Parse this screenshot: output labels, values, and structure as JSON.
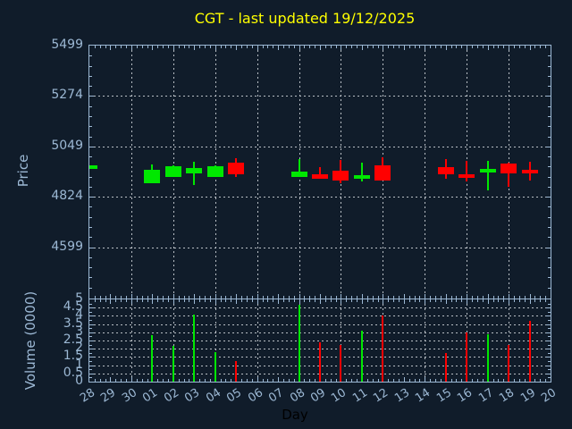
{
  "window": {
    "title": "CGT - last updated 19/12/2025"
  },
  "colors": {
    "background": "#101c2a",
    "axis": "#9cb8d4",
    "grid": "#b9bfc5",
    "title": "#ffff00",
    "up": "#00e800",
    "down": "#ff0000",
    "xlabel_color": "#000000"
  },
  "chart_data": [
    {
      "type": "candlestick",
      "title": "CGT - last updated 19/12/2025",
      "ylabel": "Price",
      "yticks": [
        "5499",
        "5274",
        "5049",
        "4824",
        "4599"
      ],
      "ytick_values": [
        5499,
        5274,
        5049,
        4824,
        4599
      ],
      "ylim": [
        4371,
        5499
      ],
      "grid": "dashed; horizontal at price ticks, vertical every 2nd day",
      "legend": "none",
      "x_categories": [
        "28",
        "29",
        "30",
        "01",
        "02",
        "03",
        "04",
        "05",
        "06",
        "07",
        "08",
        "09",
        "10",
        "11",
        "12",
        "13",
        "14",
        "15",
        "16",
        "17",
        "18",
        "19",
        "20"
      ],
      "candles": [
        {
          "day": "28",
          "open": 4947,
          "high": 4965,
          "low": 4947,
          "close": 4965,
          "dir": "up"
        },
        {
          "day": "01",
          "open": 4886,
          "high": 4968,
          "low": 4886,
          "close": 4945,
          "dir": "up"
        },
        {
          "day": "02",
          "open": 4912,
          "high": 4966,
          "low": 4912,
          "close": 4961,
          "dir": "up"
        },
        {
          "day": "03",
          "open": 4928,
          "high": 4982,
          "low": 4878,
          "close": 4952,
          "dir": "up"
        },
        {
          "day": "04",
          "open": 4914,
          "high": 4963,
          "low": 4914,
          "close": 4959,
          "dir": "up"
        },
        {
          "day": "05",
          "open": 4976,
          "high": 4996,
          "low": 4915,
          "close": 4926,
          "dir": "down"
        },
        {
          "day": "08",
          "open": 4912,
          "high": 4992,
          "low": 4912,
          "close": 4938,
          "dir": "up"
        },
        {
          "day": "09",
          "open": 4926,
          "high": 4956,
          "low": 4904,
          "close": 4906,
          "dir": "down"
        },
        {
          "day": "10",
          "open": 4939,
          "high": 4990,
          "low": 4886,
          "close": 4899,
          "dir": "down"
        },
        {
          "day": "11",
          "open": 4906,
          "high": 4975,
          "low": 4895,
          "close": 4922,
          "dir": "up"
        },
        {
          "day": "12",
          "open": 4966,
          "high": 4999,
          "low": 4897,
          "close": 4899,
          "dir": "down"
        },
        {
          "day": "15",
          "open": 4955,
          "high": 4992,
          "low": 4906,
          "close": 4926,
          "dir": "down"
        },
        {
          "day": "16",
          "open": 4926,
          "high": 4986,
          "low": 4892,
          "close": 4908,
          "dir": "down"
        },
        {
          "day": "17",
          "open": 4932,
          "high": 4983,
          "low": 4852,
          "close": 4948,
          "dir": "up"
        },
        {
          "day": "18",
          "open": 4972,
          "high": 4976,
          "low": 4868,
          "close": 4930,
          "dir": "down"
        },
        {
          "day": "19",
          "open": 4946,
          "high": 4979,
          "low": 4899,
          "close": 4930,
          "dir": "down"
        }
      ]
    },
    {
      "type": "bar",
      "ylabel": "Volume (0000)",
      "xlabel": "Day",
      "yticks": [
        "0",
        "0.5",
        "1",
        "1.5",
        "2",
        "2.5",
        "3",
        "3.5",
        "4",
        "4.5",
        "5"
      ],
      "ytick_values": [
        0,
        0.5,
        1,
        1.5,
        2,
        2.5,
        3,
        3.5,
        4,
        4.5,
        5
      ],
      "ylim": [
        0,
        5
      ],
      "grid": "dashed; horizontal every 0.5, vertical every 2nd day",
      "x_categories": [
        "28",
        "29",
        "30",
        "01",
        "02",
        "03",
        "04",
        "05",
        "06",
        "07",
        "08",
        "09",
        "10",
        "11",
        "12",
        "13",
        "14",
        "15",
        "16",
        "17",
        "18",
        "19",
        "20"
      ],
      "bars": [
        {
          "day": "01",
          "value": 2.85,
          "dir": "up"
        },
        {
          "day": "02",
          "value": 2.15,
          "dir": "up"
        },
        {
          "day": "03",
          "value": 4.05,
          "dir": "up"
        },
        {
          "day": "04",
          "value": 1.8,
          "dir": "up"
        },
        {
          "day": "05",
          "value": 1.25,
          "dir": "down"
        },
        {
          "day": "08",
          "value": 4.65,
          "dir": "up"
        },
        {
          "day": "09",
          "value": 2.4,
          "dir": "down"
        },
        {
          "day": "10",
          "value": 2.25,
          "dir": "down"
        },
        {
          "day": "11",
          "value": 3.1,
          "dir": "up"
        },
        {
          "day": "12",
          "value": 4.0,
          "dir": "down"
        },
        {
          "day": "15",
          "value": 1.75,
          "dir": "down"
        },
        {
          "day": "16",
          "value": 3.0,
          "dir": "down"
        },
        {
          "day": "17",
          "value": 2.9,
          "dir": "up"
        },
        {
          "day": "18",
          "value": 2.25,
          "dir": "down"
        },
        {
          "day": "19",
          "value": 3.7,
          "dir": "down"
        }
      ]
    }
  ]
}
